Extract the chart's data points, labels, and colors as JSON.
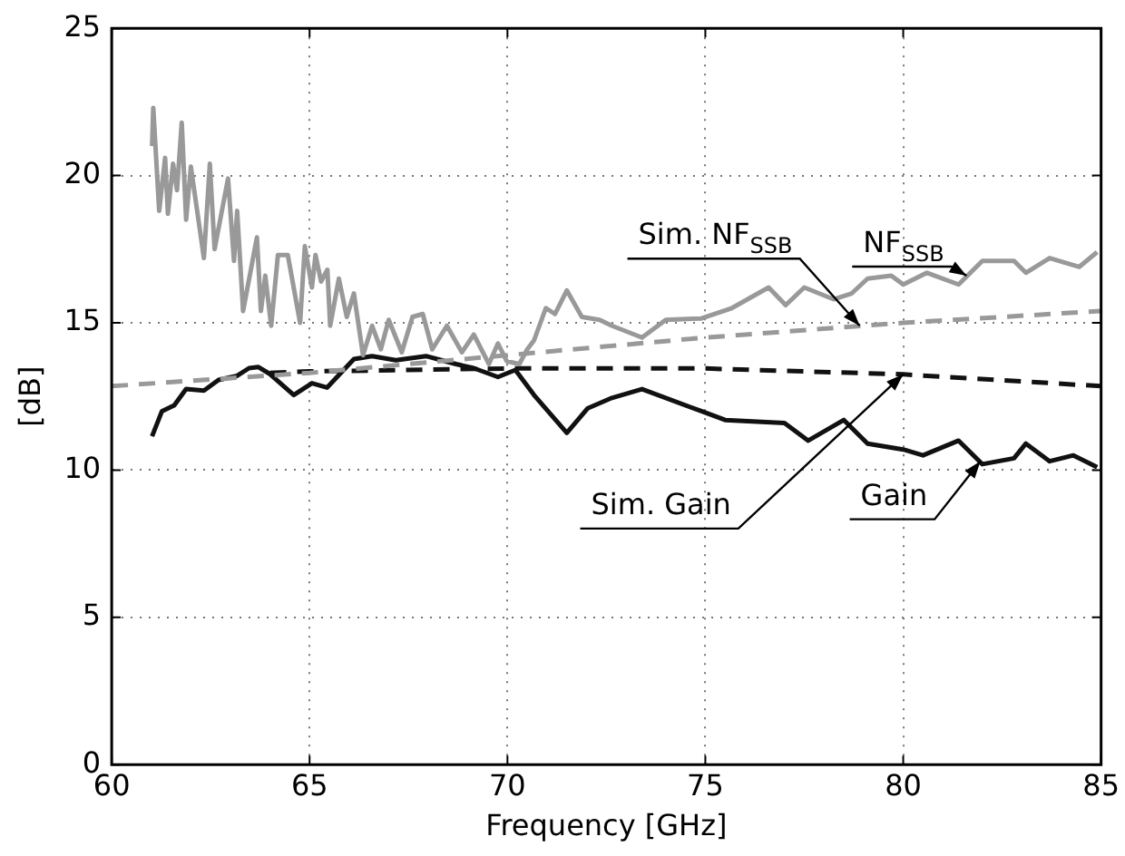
{
  "chart_data": {
    "type": "line",
    "xlabel": "Frequency [GHz]",
    "ylabel": "[dB]",
    "xlim": [
      60,
      85
    ],
    "xticks": [
      60,
      65,
      70,
      75,
      80,
      85
    ],
    "ylim": [
      0,
      25
    ],
    "yticks": [
      0,
      5,
      10,
      15,
      20,
      25
    ],
    "grid": true,
    "legend": false,
    "marker": "none",
    "series": [
      {
        "color": "#999999",
        "line_style": "solid",
        "x": [
          61.02,
          61.05,
          61.2,
          61.35,
          61.42,
          61.55,
          61.65,
          61.77,
          61.88,
          62.0,
          62.33,
          62.48,
          62.6,
          62.94,
          63.09,
          63.17,
          63.32,
          63.67,
          63.77,
          63.88,
          64.03,
          64.2,
          64.45,
          64.76,
          64.88,
          65.06,
          65.15,
          65.29,
          65.45,
          65.52,
          65.74,
          65.94,
          66.12,
          66.35,
          66.58,
          66.8,
          67.0,
          67.33,
          67.6,
          67.86,
          68.1,
          68.47,
          68.85,
          69.15,
          69.53,
          69.76,
          69.98,
          70.3,
          70.5,
          70.67,
          70.97,
          71.2,
          71.5,
          71.88,
          72.33,
          72.64,
          73.4,
          74.0,
          74.9,
          75.67,
          76.6,
          77.03,
          77.5,
          78.24,
          78.7,
          79.1,
          79.7,
          80.0,
          80.6,
          81.4,
          82.0,
          82.8,
          83.1,
          83.7,
          84.45,
          84.9
        ],
        "values": [
          21.0,
          22.3,
          18.8,
          20.6,
          18.7,
          20.4,
          19.5,
          21.8,
          18.5,
          20.3,
          17.2,
          20.4,
          17.5,
          19.9,
          17.1,
          18.8,
          15.4,
          17.9,
          15.4,
          16.6,
          14.9,
          17.3,
          17.3,
          15.0,
          17.6,
          16.2,
          17.3,
          16.4,
          16.8,
          14.9,
          16.5,
          15.2,
          16.0,
          13.9,
          14.9,
          14.1,
          15.1,
          14.0,
          15.2,
          15.3,
          14.1,
          14.9,
          14.0,
          14.6,
          13.6,
          14.3,
          13.7,
          13.6,
          14.1,
          14.4,
          15.5,
          15.3,
          16.1,
          15.2,
          15.1,
          14.9,
          14.5,
          15.1,
          15.15,
          15.5,
          16.2,
          15.6,
          16.2,
          15.8,
          16.0,
          16.5,
          16.6,
          16.3,
          16.7,
          16.3,
          17.1,
          17.1,
          16.7,
          17.2,
          16.9,
          17.4
        ]
      },
      {
        "color": "#999999",
        "line_style": "dashed",
        "x": [
          60,
          65,
          70,
          75,
          80,
          85
        ],
        "values": [
          12.85,
          13.3,
          13.9,
          14.5,
          15.0,
          15.4
        ]
      },
      {
        "color": "#111111",
        "line_style": "dashed",
        "x": [
          64,
          65,
          70,
          75,
          80,
          85
        ],
        "values": [
          13.3,
          13.35,
          13.45,
          13.45,
          13.25,
          12.85
        ]
      },
      {
        "color": "#111111",
        "line_style": "solid",
        "x": [
          61.02,
          61.27,
          61.58,
          61.88,
          62.33,
          62.7,
          63.17,
          63.47,
          63.7,
          64.0,
          64.6,
          65.06,
          65.44,
          66.12,
          66.58,
          67.18,
          67.94,
          68.7,
          69.15,
          69.76,
          70.2,
          70.67,
          71.5,
          72.03,
          72.64,
          73.4,
          74.9,
          75.5,
          77.0,
          77.6,
          78.5,
          79.1,
          80.0,
          80.5,
          81.4,
          82.0,
          82.8,
          83.1,
          83.7,
          84.3,
          84.9
        ],
        "values": [
          11.15,
          12.0,
          12.2,
          12.75,
          12.7,
          13.06,
          13.2,
          13.46,
          13.5,
          13.26,
          12.55,
          12.95,
          12.8,
          13.77,
          13.87,
          13.73,
          13.87,
          13.6,
          13.46,
          13.16,
          13.4,
          12.55,
          11.26,
          12.1,
          12.45,
          12.75,
          12.0,
          11.7,
          11.6,
          11.0,
          11.7,
          10.9,
          10.7,
          10.5,
          11.0,
          10.2,
          10.4,
          10.9,
          10.3,
          10.5,
          10.1
        ]
      }
    ],
    "annotations": [
      {
        "text": "Sim. NF$_{SSB}$",
        "x": 78.9,
        "y": 14.9
      },
      {
        "text": "NF$_{SSB}$",
        "x": 81.6,
        "y": 16.6
      },
      {
        "text": "Sim. Gain",
        "x": 80.0,
        "y": 13.25
      },
      {
        "text": "Gain",
        "x": 81.95,
        "y": 10.3
      }
    ]
  }
}
